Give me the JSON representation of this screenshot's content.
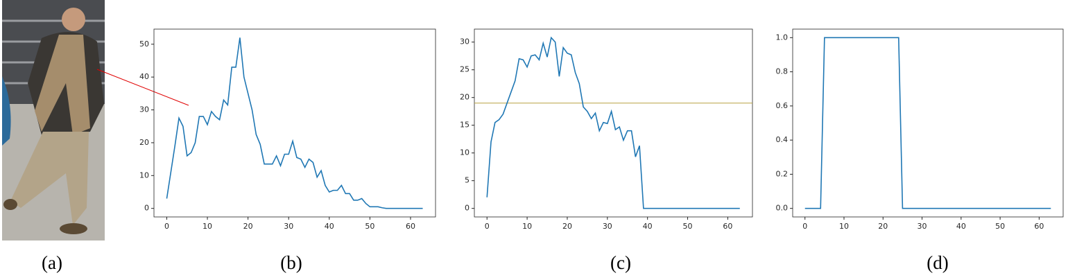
{
  "chart_data": [
    {
      "type": "line",
      "color": "#1f77b4",
      "xlim": [
        -3.15,
        66.15
      ],
      "ylim": [
        -2.6,
        54.6
      ],
      "xticks": [
        0,
        10,
        20,
        30,
        40,
        50,
        60
      ],
      "yticks": [
        0,
        10,
        20,
        30,
        40,
        50
      ],
      "x": [
        0,
        1,
        2,
        3,
        4,
        5,
        6,
        7,
        8,
        9,
        10,
        11,
        12,
        13,
        14,
        15,
        16,
        17,
        18,
        19,
        20,
        21,
        22,
        23,
        24,
        25,
        26,
        27,
        28,
        29,
        30,
        31,
        32,
        33,
        34,
        35,
        36,
        37,
        38,
        39,
        40,
        41,
        42,
        43,
        44,
        45,
        46,
        47,
        48,
        49,
        50,
        51,
        52,
        53,
        54,
        55,
        56,
        57,
        58,
        59,
        60,
        61,
        62,
        63
      ],
      "values": [
        3,
        11,
        19,
        27.5,
        25,
        16,
        17,
        20,
        28,
        28,
        25.5,
        29.5,
        28,
        27,
        33,
        31.5,
        43,
        43,
        52,
        40,
        35,
        30,
        22.5,
        19.5,
        13.5,
        13.5,
        13.5,
        16,
        13,
        16.5,
        16.5,
        20.5,
        15.5,
        15,
        12.5,
        15,
        14,
        9.5,
        11.5,
        7,
        5,
        5.5,
        5.5,
        7,
        4.5,
        4.5,
        2.5,
        2.5,
        3,
        1.5,
        0.5,
        0.5,
        0.5,
        0.2,
        0,
        0,
        0,
        0,
        0,
        0,
        0,
        0,
        0,
        0
      ]
    },
    {
      "type": "line",
      "color": "#1f77b4",
      "xlim": [
        -3.15,
        66.15
      ],
      "ylim": [
        -1.54,
        32.34
      ],
      "xticks": [
        0,
        10,
        20,
        30,
        40,
        50,
        60
      ],
      "yticks": [
        0,
        5,
        10,
        15,
        20,
        25,
        30
      ],
      "hline": 19,
      "hline_color": "#b8a040",
      "x": [
        0,
        1,
        2,
        3,
        4,
        5,
        6,
        7,
        8,
        9,
        10,
        11,
        12,
        13,
        14,
        15,
        16,
        17,
        18,
        19,
        20,
        21,
        22,
        23,
        24,
        25,
        26,
        27,
        28,
        29,
        30,
        31,
        32,
        33,
        34,
        35,
        36,
        37,
        38,
        39,
        40,
        41,
        42,
        43,
        44,
        45,
        46,
        47,
        48,
        49,
        50,
        51,
        52,
        53,
        54,
        55,
        56,
        57,
        58,
        59,
        60,
        61,
        62,
        63
      ],
      "values": [
        2,
        12,
        15.5,
        16,
        17,
        19,
        21,
        23,
        27,
        26.8,
        25.5,
        27.5,
        27.7,
        26.8,
        29.8,
        27.3,
        30.8,
        30,
        23.8,
        29,
        28,
        27.7,
        24.5,
        22.5,
        18.3,
        17.5,
        16.2,
        17.2,
        14,
        15.5,
        15.3,
        17.5,
        14.2,
        14.7,
        12.3,
        14,
        14,
        9.3,
        11.3,
        0,
        0,
        0,
        0,
        0,
        0,
        0,
        0,
        0,
        0,
        0,
        0,
        0,
        0,
        0,
        0,
        0,
        0,
        0,
        0,
        0,
        0,
        0,
        0,
        0
      ]
    },
    {
      "type": "line",
      "color": "#1f77b4",
      "xlim": [
        -3.15,
        66.15
      ],
      "ylim": [
        -0.05,
        1.05
      ],
      "xticks": [
        0,
        10,
        20,
        30,
        40,
        50,
        60
      ],
      "yticks": [
        {
          "value": 0,
          "label": "0.0"
        },
        {
          "value": 0.2,
          "label": "0.2"
        },
        {
          "value": 0.4,
          "label": "0.4"
        },
        {
          "value": 0.6,
          "label": "0.6"
        },
        {
          "value": 0.8,
          "label": "0.8"
        },
        {
          "value": 1,
          "label": "1.0"
        }
      ],
      "x": [
        0,
        1,
        2,
        3,
        4,
        5,
        6,
        7,
        8,
        9,
        10,
        11,
        12,
        13,
        14,
        15,
        16,
        17,
        18,
        19,
        20,
        21,
        22,
        23,
        24,
        25,
        26,
        27,
        28,
        29,
        30,
        31,
        32,
        33,
        34,
        35,
        36,
        37,
        38,
        39,
        40,
        41,
        42,
        43,
        44,
        45,
        46,
        47,
        48,
        49,
        50,
        51,
        52,
        53,
        54,
        55,
        56,
        57,
        58,
        59,
        60,
        61,
        62,
        63
      ],
      "values": [
        0,
        0,
        0,
        0,
        0,
        1,
        1,
        1,
        1,
        1,
        1,
        1,
        1,
        1,
        1,
        1,
        1,
        1,
        1,
        1,
        1,
        1,
        1,
        1,
        1,
        0,
        0,
        0,
        0,
        0,
        0,
        0,
        0,
        0,
        0,
        0,
        0,
        0,
        0,
        0,
        0,
        0,
        0,
        0,
        0,
        0,
        0,
        0,
        0,
        0,
        0,
        0,
        0,
        0,
        0,
        0,
        0,
        0,
        0,
        0,
        0,
        0,
        0,
        0
      ]
    }
  ],
  "captions": [
    "(a)",
    "(b)",
    "(c)",
    "(d)"
  ]
}
